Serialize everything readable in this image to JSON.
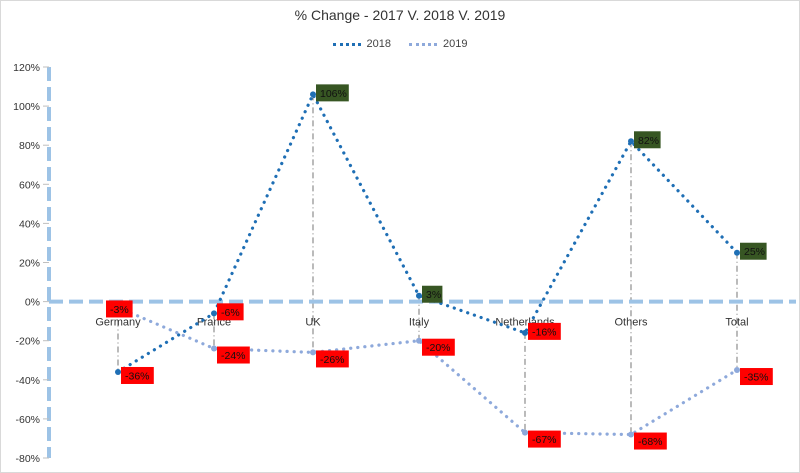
{
  "chart_data": {
    "type": "line",
    "title": "% Change - 2017 V. 2018 V. 2019",
    "categories": [
      "Germany",
      "France",
      "UK",
      "Italy",
      "Netherlands",
      "Others",
      "Total"
    ],
    "ylim": [
      -80,
      120
    ],
    "y_ticks": [
      120,
      100,
      80,
      60,
      40,
      20,
      0,
      -20,
      -40,
      -60,
      -80
    ],
    "y_tick_labels": [
      "120%",
      "100%",
      "80%",
      "60%",
      "40%",
      "20%",
      "0%",
      "-20%",
      "-40%",
      "-60%",
      "-80%"
    ],
    "legend_position": "top",
    "series": [
      {
        "name": "2018",
        "values": [
          -36,
          -6,
          106,
          3,
          -16,
          82,
          25
        ],
        "labels": [
          "-36%",
          "-6%",
          "106%",
          "3%",
          "-16%",
          "82%",
          "25%"
        ],
        "color": "#1f6fb5"
      },
      {
        "name": "2019",
        "values": [
          -3,
          -24,
          -26,
          -20,
          -67,
          -68,
          -35
        ],
        "labels": [
          "-3%",
          "-24%",
          "-26%",
          "-20%",
          "-67%",
          "-68%",
          "-35%"
        ],
        "color": "#8ea9db"
      }
    ],
    "label_colors": {
      "positive": "#375623",
      "negative": "#ff0000"
    },
    "zero_axis_color": "#9dc3e6"
  }
}
